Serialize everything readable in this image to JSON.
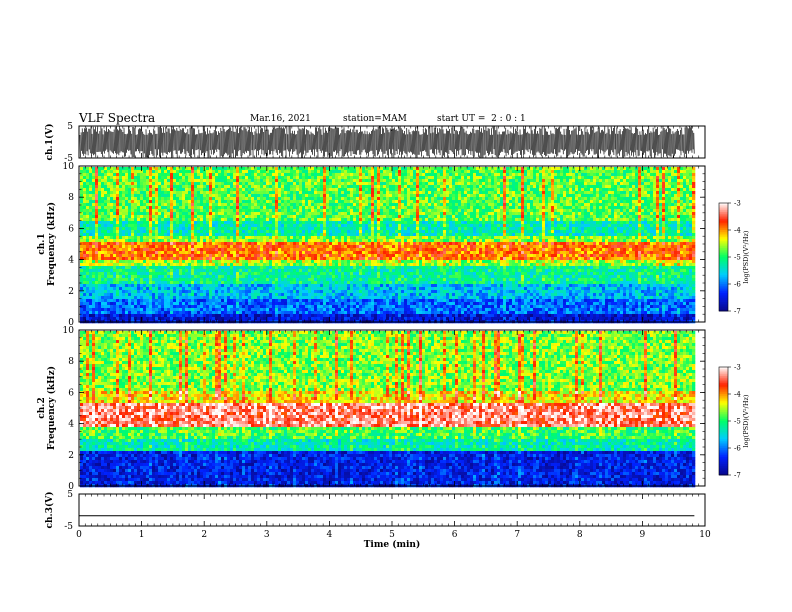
{
  "header": {
    "title": "VLF Spectra",
    "date": "Mar.16, 2021",
    "station": "station=MAM",
    "start": "start UT =  2 : 0 : 1"
  },
  "chart_data": [
    {
      "type": "line",
      "panel": "waveform-ch1",
      "ylabel": "ch.1(V)",
      "ylim": [
        -5,
        5
      ],
      "y_ticks": [
        "5",
        "-5"
      ],
      "note_values": "dense oscillation spanning roughly the full +-5 V range over 0-9.83 min"
    },
    {
      "type": "heatmap",
      "panel": "spectrogram-ch1",
      "ylabel": "ch.1\nFrequency (kHz)",
      "ylim": [
        0,
        10
      ],
      "y_ticks": [
        "0",
        "2",
        "4",
        "6",
        "8",
        "10"
      ],
      "xlim": [
        0,
        10
      ],
      "data_end_min": 9.83,
      "bands_log_psd": [
        {
          "f_from": 0.0,
          "f_to": 0.5,
          "level": -6.6
        },
        {
          "f_from": 0.5,
          "f_to": 1.5,
          "level": -6.1
        },
        {
          "f_from": 1.5,
          "f_to": 2.5,
          "level": -5.7
        },
        {
          "f_from": 2.5,
          "f_to": 3.5,
          "level": -5.2
        },
        {
          "f_from": 3.5,
          "f_to": 4.0,
          "level": -4.6
        },
        {
          "f_from": 4.0,
          "f_to": 5.1,
          "level": -3.9
        },
        {
          "f_from": 5.1,
          "f_to": 5.6,
          "level": -4.7
        },
        {
          "f_from": 5.6,
          "f_to": 6.5,
          "level": -5.3
        },
        {
          "f_from": 6.5,
          "f_to": 10.0,
          "level": -4.8
        }
      ],
      "colorbar": {
        "label": "log(PSD)(V²/Hz)",
        "range": [
          -7,
          -3
        ],
        "ticks": [
          "-3",
          "-4",
          "-5",
          "-6",
          "-7"
        ]
      }
    },
    {
      "type": "heatmap",
      "panel": "spectrogram-ch2",
      "ylabel": "ch.2\nFrequency (kHz)",
      "ylim": [
        0,
        10
      ],
      "y_ticks": [
        "0",
        "2",
        "4",
        "6",
        "8",
        "10"
      ],
      "xlim": [
        0,
        10
      ],
      "data_end_min": 9.83,
      "bands_log_psd": [
        {
          "f_from": 0.0,
          "f_to": 2.2,
          "level": -6.5
        },
        {
          "f_from": 2.2,
          "f_to": 3.0,
          "level": -5.3
        },
        {
          "f_from": 3.0,
          "f_to": 3.8,
          "level": -4.9
        },
        {
          "f_from": 3.8,
          "f_to": 5.4,
          "level": -3.4
        },
        {
          "f_from": 5.4,
          "f_to": 6.0,
          "level": -4.3
        },
        {
          "f_from": 6.0,
          "f_to": 10.0,
          "level": -4.7
        }
      ],
      "colorbar": {
        "label": "log(PSD)(V²/Hz)",
        "range": [
          -7,
          -3
        ],
        "ticks": [
          "-3",
          "-4",
          "-5",
          "-6",
          "-7"
        ]
      }
    },
    {
      "type": "line",
      "panel": "waveform-ch3",
      "ylabel": "ch.3(V)",
      "ylim": [
        -5,
        5
      ],
      "y_ticks": [
        "5",
        "-5"
      ],
      "x": [
        0,
        9.83
      ],
      "y": [
        -1.8,
        -1.8
      ]
    }
  ],
  "x_axis": {
    "xlabel": "Time (min)",
    "xlim": [
      0,
      10
    ],
    "ticks": [
      "0",
      "1",
      "2",
      "3",
      "4",
      "5",
      "6",
      "7",
      "8",
      "9",
      "10"
    ]
  },
  "colors": {
    "colormap": [
      "#08088c",
      "#0022ff",
      "#00ccff",
      "#00ff66",
      "#ffff00",
      "#ff2200",
      "#ffffff"
    ],
    "axis": "#000000"
  }
}
